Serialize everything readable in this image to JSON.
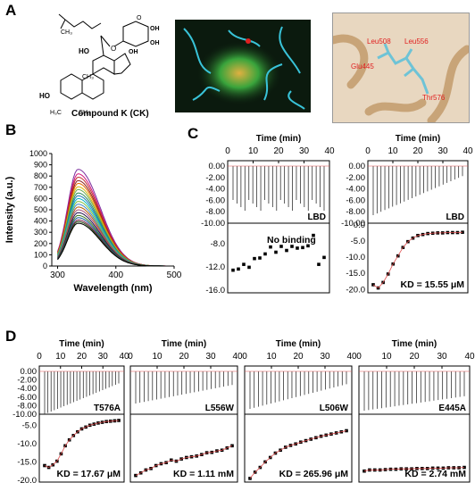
{
  "panels": {
    "A": {
      "letter": "A",
      "compound_label": "Compound K (CK)",
      "residues": [
        "Leu508",
        "Leu556",
        "Glu445",
        "Thr576"
      ],
      "structure_atoms": [
        "HO",
        "OH",
        "OH",
        "OH",
        "HO",
        "O",
        "O",
        "CH₃",
        "CH₃",
        "HO",
        "H₃C",
        "CH₃"
      ]
    },
    "B": {
      "letter": "B"
    },
    "C": {
      "letter": "C"
    },
    "D": {
      "letter": "D"
    }
  },
  "colors": {
    "dark_axis": "#000",
    "fit_line": "#e05050",
    "protein": "#39c3d8",
    "structure_bg": "#e8d7c0",
    "docking_bg": "#101a10"
  },
  "chart_data": [
    {
      "id": "B",
      "type": "line",
      "xlabel": "Wavelength (nm)",
      "ylabel": "Intensity (a.u.)",
      "xlim": [
        290,
        500
      ],
      "ylim": [
        0,
        1000
      ],
      "xticks": [
        300,
        400,
        500
      ],
      "yticks": [
        0,
        100,
        200,
        300,
        400,
        500,
        600,
        700,
        800,
        900,
        1000
      ],
      "peak_x": 335,
      "series": [
        {
          "color": "#7b2e9e",
          "values_peak": 860
        },
        {
          "color": "#d4147a",
          "values_peak": 820
        },
        {
          "color": "#c22a2a",
          "values_peak": 790
        },
        {
          "color": "#8a1f1f",
          "values_peak": 760
        },
        {
          "color": "#e66b00",
          "values_peak": 735
        },
        {
          "color": "#d9b400",
          "values_peak": 705
        },
        {
          "color": "#6aa84f",
          "values_peak": 680
        },
        {
          "color": "#2e8b57",
          "values_peak": 650
        },
        {
          "color": "#1f77b4",
          "values_peak": 625
        },
        {
          "color": "#00b3c4",
          "values_peak": 600
        },
        {
          "color": "#7fbf3f",
          "values_peak": 575
        },
        {
          "color": "#3d85c6",
          "values_peak": 550
        },
        {
          "color": "#b45f06",
          "values_peak": 525
        },
        {
          "color": "#a64d79",
          "values_peak": 500
        },
        {
          "color": "#20124d",
          "values_peak": 475
        },
        {
          "color": "#38761d",
          "values_peak": 450
        },
        {
          "color": "#0b5394",
          "values_peak": 430
        },
        {
          "color": "#741b47",
          "values_peak": 410
        },
        {
          "color": "#274e13",
          "values_peak": 395
        },
        {
          "color": "#000000",
          "values_peak": 380
        }
      ]
    },
    {
      "id": "C-LBD-WT-noCK",
      "type": "scatter",
      "title": "Time (min)",
      "label": "LBD",
      "annotation": "No binding",
      "xticks": [
        0,
        10,
        20,
        30,
        40
      ],
      "top_yticks": [
        "0.00",
        "-2.00",
        "-4.00",
        "-6.00",
        "-8.00",
        "-10.00"
      ],
      "bottom_yticks": [
        "-8.0",
        "-12.0",
        "-16.0"
      ],
      "bottom_ylim": [
        -16,
        -4.5
      ],
      "points": [
        -12.6,
        -12.4,
        -11.6,
        -12.1,
        -10.6,
        -10.5,
        -9.8,
        -8.6,
        -9.5,
        -8.5,
        -9.2,
        -8.5,
        -8.8,
        -8.7,
        -8.4,
        -6.6,
        -11.6,
        -10.4
      ]
    },
    {
      "id": "C-LBD-CK",
      "type": "scatter",
      "title": "Time (min)",
      "label": "LBD",
      "kd": "KD = 15.55 μM",
      "xticks": [
        0,
        10,
        20,
        30,
        40
      ],
      "top_yticks": [
        "0.00",
        "-2.00",
        "-4.00",
        "-6.00",
        "-8.00",
        "-10.00"
      ],
      "bottom_yticks": [
        "0.0",
        "-5.0",
        "-10.0",
        "-15.0",
        "-20.0"
      ],
      "bottom_ylim": [
        -20,
        0
      ],
      "points": [
        -18.5,
        -19.5,
        -17.8,
        -15.2,
        -12.1,
        -9.6,
        -7.0,
        -5.2,
        -4.1,
        -3.3,
        -3.0,
        -2.7,
        -2.6,
        -2.5,
        -2.5,
        -2.4,
        -2.4,
        -2.4,
        -2.3
      ]
    },
    {
      "id": "D-T576A",
      "type": "scatter",
      "title": "Time (min)",
      "label": "T576A",
      "kd": "KD = 17.67 μM",
      "xticks": [
        0,
        10,
        20,
        30,
        40
      ],
      "points": [
        -16.0,
        -16.5,
        -15.8,
        -14.8,
        -12.8,
        -10.6,
        -9.0,
        -7.8,
        -6.8,
        -6.0,
        -5.5,
        -5.0,
        -4.7,
        -4.4,
        -4.2,
        -4.0,
        -3.9,
        -3.8,
        -3.7
      ]
    },
    {
      "id": "D-L556W",
      "type": "scatter",
      "title": "Time (min)",
      "label": "L556W",
      "kd": "KD = 1.11 mM",
      "xticks": [
        0,
        10,
        20,
        30,
        40
      ],
      "points": [
        -18.7,
        -18.0,
        -17.2,
        -16.8,
        -16.0,
        -15.5,
        -15.2,
        -14.5,
        -14.8,
        -14.2,
        -13.8,
        -13.6,
        -13.4,
        -13.0,
        -12.5,
        -12.4,
        -12.0,
        -11.8,
        -11.2,
        -10.6
      ]
    },
    {
      "id": "D-L506W",
      "type": "scatter",
      "title": "Time (min)",
      "label": "L506W",
      "kd": "KD = 265.96 μM",
      "xticks": [
        0,
        10,
        20,
        30,
        40
      ],
      "points": [
        -19.5,
        -17.8,
        -16.5,
        -15.0,
        -13.8,
        -12.6,
        -11.8,
        -11.0,
        -10.5,
        -10.1,
        -9.6,
        -9.2,
        -8.8,
        -8.4,
        -8.0,
        -7.7,
        -7.4,
        -7.1,
        -6.8,
        -6.5
      ]
    },
    {
      "id": "D-E445A",
      "type": "scatter",
      "title": "Time (min)",
      "label": "E445A",
      "kd": "KD = 2.74 mM",
      "xticks": [
        0,
        10,
        20,
        30,
        40
      ],
      "points": [
        -17.5,
        -17.2,
        -17.2,
        -17.2,
        -17.1,
        -17.0,
        -17.0,
        -16.9,
        -16.9,
        -16.9,
        -16.8,
        -16.8,
        -16.8,
        -16.7,
        -16.7,
        -16.7,
        -16.6,
        -16.6,
        -16.6,
        -16.5
      ]
    }
  ],
  "d_axis": {
    "top_yticks": [
      "0.00",
      "-2.00",
      "-4.00",
      "-6.00",
      "-8.00",
      "-10.00"
    ],
    "bottom_yticks": [
      "-5.0",
      "-10.0",
      "-15.0",
      "-20.0"
    ],
    "bottom_ylim": [
      -20,
      -2
    ]
  }
}
